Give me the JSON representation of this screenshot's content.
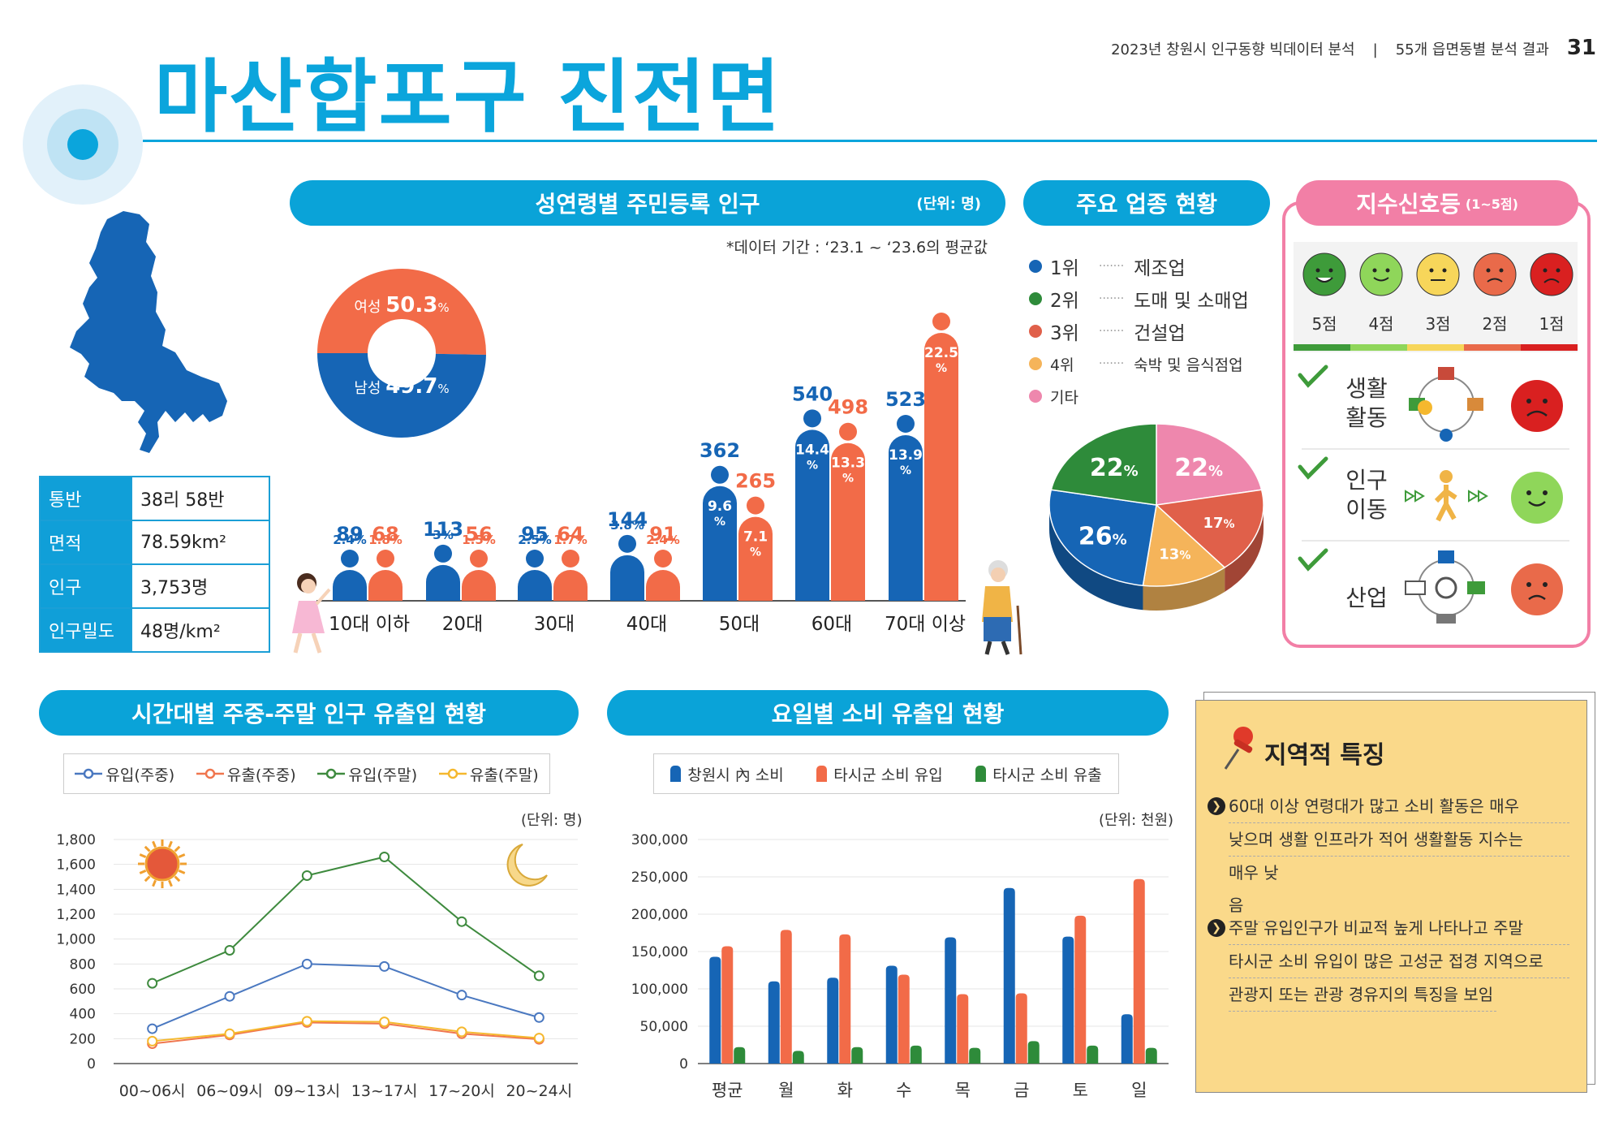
{
  "header": {
    "title": "마산합포구 진전면",
    "report": "2023년 창원시 인구동향 빅데이터 분석",
    "separator": "|",
    "section": "55개 읍면동별 분석 결과",
    "page_number": "31",
    "colors": {
      "title": "#0ba5dc",
      "line": "#0ba5dc"
    }
  },
  "info_table": {
    "rows": [
      {
        "key": "통반",
        "value": "38리 58반"
      },
      {
        "key": "면적",
        "value": "78.59km²"
      },
      {
        "key": "인구",
        "value": "3,753명"
      },
      {
        "key": "인구밀도",
        "value": "48명/km²"
      }
    ]
  },
  "population_section": {
    "title": "성연령별 주민등록 인구",
    "unit": "(단위: 명)",
    "note": "*데이터 기간 : ‘23.1 ~ ‘23.6의 평균값"
  },
  "industry_section": {
    "title": "주요 업종 현황"
  },
  "signal_section": {
    "title": "지수신호등",
    "range": "(1~5점)",
    "scores": [
      "5점",
      "4점",
      "3점",
      "2점",
      "1점"
    ],
    "colors": [
      "#3e9b3a",
      "#8fd65a",
      "#f7d65a",
      "#e96a4a",
      "#d92020"
    ],
    "items": [
      {
        "label_line1": "생활",
        "label_line2": "활동",
        "score": 1
      },
      {
        "label_line1": "인구",
        "label_line2": "이동",
        "score": 4
      },
      {
        "label_line1": "산업",
        "label_line2": "",
        "score": 2
      }
    ]
  },
  "flow_section": {
    "title": "시간대별 주중-주말 인구 유출입 현황",
    "unit": "(단위: 명)"
  },
  "consumption_section": {
    "title": "요일별 소비 유출입 현황",
    "unit": "(단위: 천원)"
  },
  "features": {
    "title": "지역적 특징",
    "items": [
      {
        "lines": [
          "60대 이상 연령대가 많고 소비 활동은 매우",
          "낮으며 생활 인프라가 적어 생활활동 지수는",
          "매우 낮음"
        ]
      },
      {
        "lines": [
          "주말 유입인구가 비교적 높게 나타나고 주말",
          "타시군 소비 유입이 많은 고성군 접경 지역으로",
          "관광지 또는 관광 경유지의 특징을 보임"
        ]
      }
    ]
  },
  "chart_data": [
    {
      "type": "pie",
      "id": "gender",
      "slices": [
        {
          "label": "여성",
          "value": 50.3,
          "display": "50.3",
          "unit": "%",
          "color": "#f26b48"
        },
        {
          "label": "남성",
          "value": 49.7,
          "display": "49.7",
          "unit": "%",
          "color": "#1665b5"
        }
      ]
    },
    {
      "type": "bar",
      "id": "age_population",
      "categories": [
        "10대 이하",
        "20대",
        "30대",
        "40대",
        "50대",
        "60대",
        "70대 이상"
      ],
      "series": [
        {
          "values": [
            89,
            113,
            95,
            144,
            362,
            540,
            523
          ],
          "percent_labels": [
            "2.4%",
            "3%",
            "2.5%",
            "3.8%",
            "9.6%",
            "14.4%",
            "13.9%"
          ],
          "color": "#1665b5"
        },
        {
          "values": [
            68,
            56,
            64,
            91,
            265,
            498,
            846
          ],
          "percent_labels": [
            "1.8%",
            "1.5%",
            "1.7%",
            "2.4%",
            "7.1%",
            "13.3%",
            "22.5%"
          ],
          "color": "#f26b48"
        }
      ]
    },
    {
      "type": "pie",
      "id": "industry",
      "legend": [
        {
          "rank": "1위",
          "name": "제조업",
          "color": "#1665b5"
        },
        {
          "rank": "2위",
          "name": "도매 및 소매업",
          "color": "#2e8b3a"
        },
        {
          "rank": "3위",
          "name": "건설업",
          "color": "#e0604a"
        },
        {
          "rank": "4위",
          "name": "숙박 및 음식점업",
          "color": "#f5b45a"
        },
        {
          "rank": "",
          "name": "기타",
          "color": "#ee87ad"
        }
      ],
      "slices": [
        {
          "name": "기타",
          "value": 22,
          "label": "22%",
          "color": "#ee87ad"
        },
        {
          "name": "건설업",
          "value": 17,
          "label": "17%",
          "color": "#e0604a"
        },
        {
          "name": "숙박 및 음식점업",
          "value": 13,
          "label": "13%",
          "color": "#f5b45a"
        },
        {
          "name": "제조업",
          "value": 26,
          "label": "26%",
          "color": "#1665b5"
        },
        {
          "name": "도매 및 소매업",
          "value": 22,
          "label": "22%",
          "color": "#2e8b3a"
        }
      ]
    },
    {
      "type": "line",
      "id": "hourly_flow",
      "categories": [
        "00~06시",
        "06~09시",
        "09~13시",
        "13~17시",
        "17~20시",
        "20~24시"
      ],
      "ylim": [
        0,
        1800
      ],
      "yticks": [
        "0",
        "200",
        "400",
        "600",
        "800",
        "1,000",
        "1,200",
        "1,400",
        "1,600",
        "1,800"
      ],
      "series": [
        {
          "name": "유입(주중)",
          "values": [
            280,
            540,
            800,
            780,
            550,
            370
          ],
          "color": "#4a78c0"
        },
        {
          "name": "유출(주중)",
          "values": [
            160,
            230,
            330,
            320,
            240,
            195
          ],
          "color": "#f0764e"
        },
        {
          "name": "유입(주말)",
          "values": [
            645,
            910,
            1510,
            1660,
            1140,
            705
          ],
          "color": "#3e8a3e"
        },
        {
          "name": "유출(주말)",
          "values": [
            180,
            240,
            340,
            335,
            255,
            205
          ],
          "color": "#f5b82e"
        }
      ]
    },
    {
      "type": "bar",
      "id": "daily_consumption",
      "categories": [
        "평균",
        "월",
        "화",
        "수",
        "목",
        "금",
        "토",
        "일"
      ],
      "ylim": [
        0,
        300000
      ],
      "yticks": [
        "0",
        "50,000",
        "100,000",
        "150,000",
        "200,000",
        "250,000",
        "300,000"
      ],
      "series": [
        {
          "name": "창원시 內 소비",
          "values": [
            143000,
            110000,
            115000,
            131000,
            169000,
            235000,
            170000,
            66000
          ],
          "color": "#1665b5"
        },
        {
          "name": "타시군 소비 유입",
          "values": [
            157000,
            179000,
            173000,
            119000,
            93000,
            94000,
            198000,
            247000
          ],
          "color": "#f26b48"
        },
        {
          "name": "타시군 소비 유출",
          "values": [
            22000,
            17000,
            22000,
            24000,
            21000,
            30000,
            24000,
            21000
          ],
          "color": "#2e8b3a"
        }
      ]
    }
  ]
}
